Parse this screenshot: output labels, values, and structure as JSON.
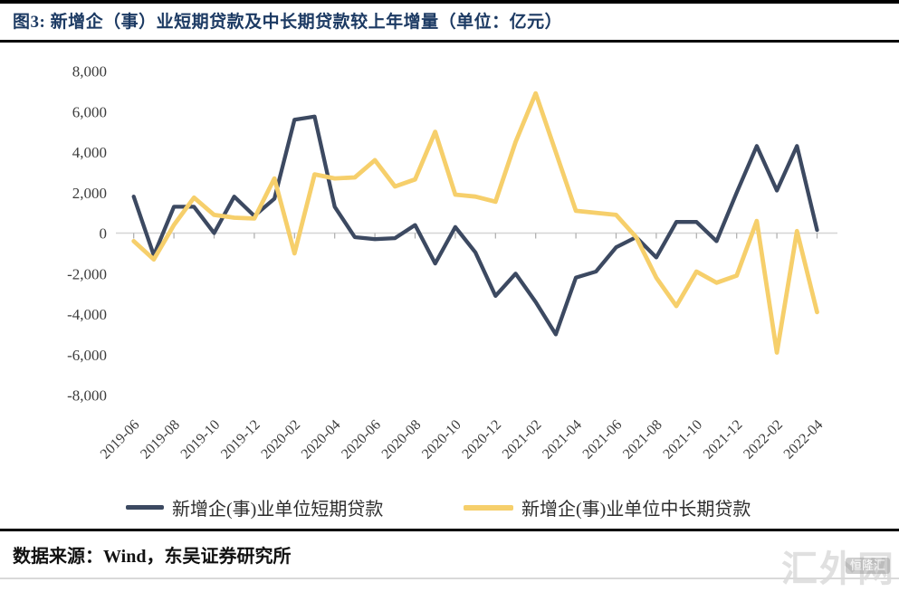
{
  "header": {
    "title": "图3:  新增企（事）业短期贷款及中长期贷款较上年增量（单位：亿元）"
  },
  "footer": {
    "source_label": "数据来源：Wind，东吴证券研究所"
  },
  "watermark": {
    "text": "汇外网",
    "badge_text": "恒隆汇"
  },
  "colors": {
    "short_term": "#3c4961",
    "long_term": "#f6cf6b",
    "zero_line": "#d4d4d4",
    "tick": "#ababab",
    "title_text": "#1c3a63",
    "axis_text": "#3c3c3c"
  },
  "chart_data": {
    "type": "line",
    "title": "新增企（事）业短期贷款及中长期贷款较上年增量",
    "unit": "亿元",
    "grid": "zero-line-only",
    "legend_position": "bottom",
    "ylim": [
      -8000,
      8000
    ],
    "axis": {
      "y_ticks": [
        8000,
        6000,
        4000,
        2000,
        0,
        -2000,
        -4000,
        -6000,
        -8000
      ],
      "x_label_every": 2
    },
    "x": [
      "2019-06",
      "2019-07",
      "2019-08",
      "2019-09",
      "2019-10",
      "2019-11",
      "2019-12",
      "2020-01",
      "2020-02",
      "2020-03",
      "2020-04",
      "2020-05",
      "2020-06",
      "2020-07",
      "2020-08",
      "2020-09",
      "2020-10",
      "2020-11",
      "2020-12",
      "2021-01",
      "2021-02",
      "2021-03",
      "2021-04",
      "2021-05",
      "2021-06",
      "2021-07",
      "2021-08",
      "2021-09",
      "2021-10",
      "2021-11",
      "2021-12",
      "2022-01",
      "2022-02",
      "2022-03",
      "2022-04"
    ],
    "series": [
      {
        "key": "short-term",
        "name": "新增企(事)业单位短期贷款",
        "color_key": "short_term",
        "values": [
          1800,
          -1100,
          1300,
          1300,
          0,
          1800,
          850,
          1700,
          5600,
          5750,
          1300,
          -200,
          -300,
          -250,
          400,
          -1500,
          300,
          -950,
          -3100,
          -2000,
          -3400,
          -5000,
          -2200,
          -1900,
          -700,
          -200,
          -1200,
          550,
          550,
          -400,
          2000,
          4300,
          2100,
          4300,
          150
        ]
      },
      {
        "key": "long-term",
        "name": "新增企(事)业单位中长期贷款",
        "color_key": "long_term",
        "values": [
          -400,
          -1300,
          400,
          1750,
          900,
          760,
          720,
          2700,
          -1000,
          2900,
          2700,
          2750,
          3600,
          2300,
          2650,
          5000,
          1900,
          1800,
          1550,
          4500,
          6900,
          4000,
          1100,
          1000,
          900,
          -200,
          -2200,
          -3600,
          -1900,
          -2450,
          -2100,
          600,
          -5900,
          100,
          -3900
        ]
      }
    ]
  }
}
